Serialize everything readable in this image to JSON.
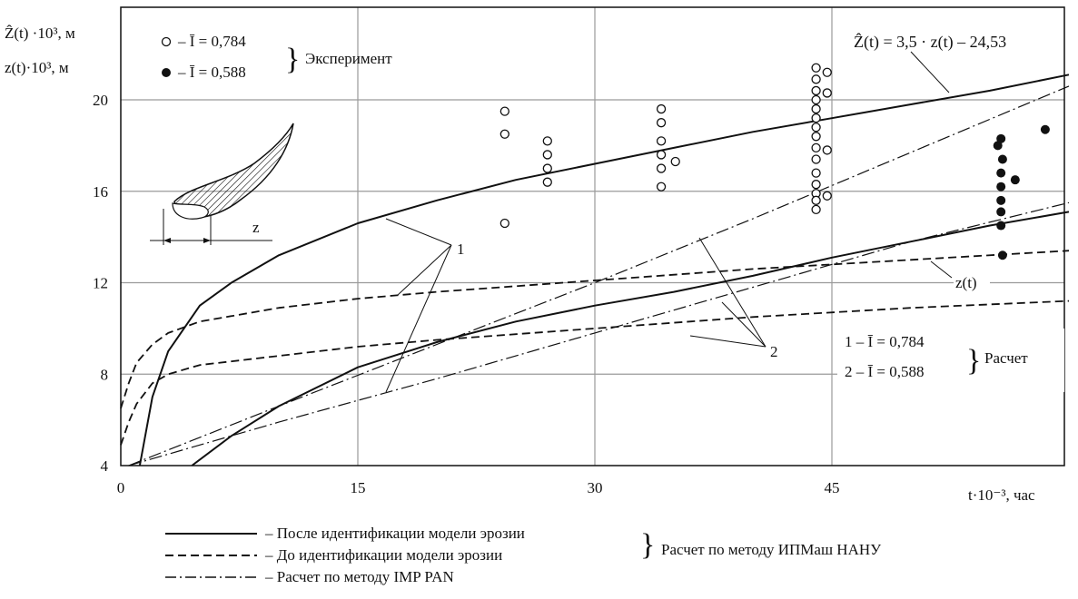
{
  "chart_data": {
    "type": "line",
    "xlabel": "t·10⁻³, час",
    "ylabel_top": "Ẑ(t) ·10³, м",
    "ylabel_bottom": "z(t)·10³, м",
    "xlim": [
      0,
      60
    ],
    "ylim": [
      4,
      22
    ],
    "x_ticks": [
      0,
      15,
      30,
      45
    ],
    "x_tick_labels": [
      "0",
      "15",
      "30",
      "45"
    ],
    "y_ticks": [
      4,
      8,
      12,
      16,
      20
    ],
    "y_tick_labels": [
      "4",
      "8",
      "12",
      "16",
      "20"
    ],
    "grid": true,
    "series": [
      {
        "name": "После идентификации модели эрозии",
        "style": "solid",
        "group": "1",
        "x": [
          1.2,
          2,
          3,
          5,
          7,
          10,
          15,
          20,
          25,
          30,
          35,
          40,
          45,
          50,
          55,
          60
        ],
        "y": [
          4.0,
          7.0,
          9.0,
          11.0,
          12.0,
          13.2,
          14.6,
          15.6,
          16.5,
          17.2,
          17.9,
          18.6,
          19.2,
          19.8,
          20.4,
          21.1
        ]
      },
      {
        "name": "После идентификации модели эрозии",
        "style": "solid",
        "group": "2",
        "x": [
          4.5,
          7,
          10,
          15,
          20,
          25,
          30,
          35,
          40,
          45,
          50,
          55,
          60
        ],
        "y": [
          4.0,
          5.3,
          6.6,
          8.3,
          9.4,
          10.3,
          11.0,
          11.6,
          12.3,
          13.1,
          13.8,
          14.5,
          15.1
        ]
      },
      {
        "name": "До идентификации модели эрозии",
        "style": "dashed",
        "group": "1",
        "x": [
          0,
          0.5,
          1,
          2,
          3,
          5,
          10,
          15,
          20,
          30,
          40,
          50,
          60
        ],
        "y": [
          6.5,
          7.6,
          8.5,
          9.3,
          9.8,
          10.3,
          10.9,
          11.3,
          11.6,
          12.1,
          12.6,
          13.0,
          13.4
        ]
      },
      {
        "name": "До идентификации модели эрозии",
        "style": "dashed",
        "group": "2",
        "x": [
          0,
          0.5,
          1,
          2,
          3,
          5,
          10,
          15,
          20,
          30,
          40,
          50,
          60
        ],
        "y": [
          4.9,
          5.9,
          6.7,
          7.6,
          8.0,
          8.4,
          8.8,
          9.2,
          9.5,
          10.0,
          10.5,
          10.9,
          11.2
        ]
      },
      {
        "name": "Расчет по методу IMP PAN",
        "style": "dashdot",
        "group": "1",
        "x": [
          0.5,
          10,
          20,
          30,
          40,
          50,
          60
        ],
        "y": [
          4.0,
          6.6,
          9.3,
          12.0,
          14.8,
          17.7,
          20.6
        ]
      },
      {
        "name": "Расчет по методу IMP PAN",
        "style": "dashdot",
        "group": "2",
        "x": [
          0.5,
          10,
          20,
          30,
          40,
          50,
          60
        ],
        "y": [
          4.0,
          5.9,
          7.8,
          9.8,
          11.8,
          13.8,
          15.5
        ]
      }
    ],
    "experiment": [
      {
        "name": "Ī = 0,784",
        "marker": "open",
        "x": [
          24.3,
          24.3,
          24.3,
          27.0,
          27.0,
          27.0,
          27.0,
          34.2,
          34.2,
          34.2,
          34.2,
          34.2,
          34.2,
          35.1,
          44.0,
          44.0,
          44.0,
          44.0,
          44.0,
          44.0,
          44.0,
          44.0,
          44.0,
          44.0,
          44.0,
          44.0,
          44.0,
          44.0,
          44.0,
          44.7,
          44.7,
          44.7,
          44.7
        ],
        "y": [
          19.5,
          18.5,
          14.6,
          18.2,
          17.6,
          17.0,
          16.4,
          19.6,
          19.0,
          18.2,
          17.6,
          17.0,
          16.2,
          17.3,
          21.4,
          20.9,
          20.4,
          20.0,
          19.6,
          19.2,
          18.8,
          18.4,
          17.9,
          17.4,
          16.8,
          16.3,
          15.9,
          15.6,
          15.2,
          21.2,
          20.3,
          17.8,
          15.8
        ]
      },
      {
        "name": "Ī = 0,588",
        "marker": "filled",
        "x": [
          55.5,
          55.7,
          55.8,
          55.7,
          55.7,
          55.7,
          55.7,
          55.7,
          55.8,
          56.6,
          58.5
        ],
        "y": [
          18.0,
          18.3,
          17.4,
          16.8,
          16.2,
          15.6,
          15.1,
          14.5,
          13.2,
          16.5,
          18.7
        ]
      }
    ],
    "annotations": {
      "legend_exp_open": "– Ī = 0,784",
      "legend_exp_filled": "– Ī = 0,588",
      "exp_group": "Эксперимент",
      "formula": "Ẑ(t) = 3,5 · z(t) – 24,53",
      "z_label": "z(t)",
      "group_label_1": "1",
      "group_label_2": "2",
      "calc_1": "1 – Ī = 0,784",
      "calc_2": "2 – Ī = 0,588",
      "calc_group": "Расчет",
      "inset_z": "z"
    }
  },
  "legend": {
    "solid": "– После идентификации модели эрозии",
    "dashed": "– До идентификации модели эрозии",
    "dashdot": "– Расчет по методу IMP PAN",
    "group": "Расчет по методу ИПМаш НАНУ"
  },
  "colors": {
    "line": "#111111",
    "grid": "#9a9a9a",
    "background": "#ffffff"
  }
}
